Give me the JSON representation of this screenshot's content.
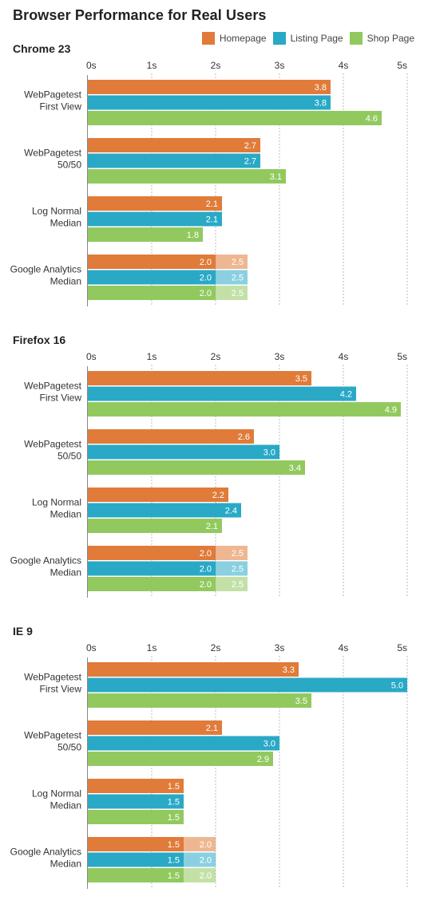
{
  "title": "Browser Performance for Real Users",
  "legend": [
    {
      "name": "Homepage",
      "color": "#e07b39"
    },
    {
      "name": "Listing Page",
      "color": "#29a9c6"
    },
    {
      "name": "Shop Page",
      "color": "#92c95f"
    }
  ],
  "chart_data": [
    {
      "type": "bar",
      "title": "Chrome 23",
      "orientation": "horizontal",
      "xlim": [
        0,
        5
      ],
      "xticks": [
        "0s",
        "1s",
        "2s",
        "3s",
        "4s",
        "5s"
      ],
      "grid": true,
      "legend_position": "top-right",
      "categories": [
        [
          "WebPagetest",
          "First View"
        ],
        [
          "WebPagetest",
          "50/50"
        ],
        [
          "Log Normal",
          "Median"
        ],
        [
          "Google Analytics",
          "Median"
        ]
      ],
      "series": [
        {
          "name": "Homepage",
          "values": [
            3.8,
            2.7,
            2.1,
            2.0
          ],
          "extended": [
            null,
            null,
            null,
            2.5
          ]
        },
        {
          "name": "Listing Page",
          "values": [
            3.8,
            2.7,
            2.1,
            2.0
          ],
          "extended": [
            null,
            null,
            null,
            2.5
          ]
        },
        {
          "name": "Shop Page",
          "values": [
            4.6,
            3.1,
            1.8,
            2.0
          ],
          "extended": [
            null,
            null,
            null,
            2.5
          ]
        }
      ]
    },
    {
      "type": "bar",
      "title": "Firefox 16",
      "orientation": "horizontal",
      "xlim": [
        0,
        5
      ],
      "xticks": [
        "0s",
        "1s",
        "2s",
        "3s",
        "4s",
        "5s"
      ],
      "grid": true,
      "categories": [
        [
          "WebPagetest",
          "First View"
        ],
        [
          "WebPagetest",
          "50/50"
        ],
        [
          "Log Normal",
          "Median"
        ],
        [
          "Google Analytics",
          "Median"
        ]
      ],
      "series": [
        {
          "name": "Homepage",
          "values": [
            3.5,
            2.6,
            2.2,
            2.0
          ],
          "extended": [
            null,
            null,
            null,
            2.5
          ]
        },
        {
          "name": "Listing Page",
          "values": [
            4.2,
            3.0,
            2.4,
            2.0
          ],
          "extended": [
            null,
            null,
            null,
            2.5
          ]
        },
        {
          "name": "Shop Page",
          "values": [
            4.9,
            3.4,
            2.1,
            2.0
          ],
          "extended": [
            null,
            null,
            null,
            2.5
          ]
        }
      ]
    },
    {
      "type": "bar",
      "title": "IE 9",
      "orientation": "horizontal",
      "xlim": [
        0,
        5
      ],
      "xticks": [
        "0s",
        "1s",
        "2s",
        "3s",
        "4s",
        "5s"
      ],
      "grid": true,
      "categories": [
        [
          "WebPagetest",
          "First View"
        ],
        [
          "WebPagetest",
          "50/50"
        ],
        [
          "Log Normal",
          "Median"
        ],
        [
          "Google Analytics",
          "Median"
        ]
      ],
      "series": [
        {
          "name": "Homepage",
          "values": [
            3.3,
            2.1,
            1.5,
            1.5
          ],
          "extended": [
            null,
            null,
            null,
            2.0
          ]
        },
        {
          "name": "Listing Page",
          "values": [
            5.0,
            3.0,
            1.5,
            1.5
          ],
          "extended": [
            null,
            null,
            null,
            2.0
          ]
        },
        {
          "name": "Shop Page",
          "values": [
            3.5,
            2.9,
            1.5,
            1.5
          ],
          "extended": [
            null,
            null,
            null,
            2.0
          ]
        }
      ]
    }
  ]
}
